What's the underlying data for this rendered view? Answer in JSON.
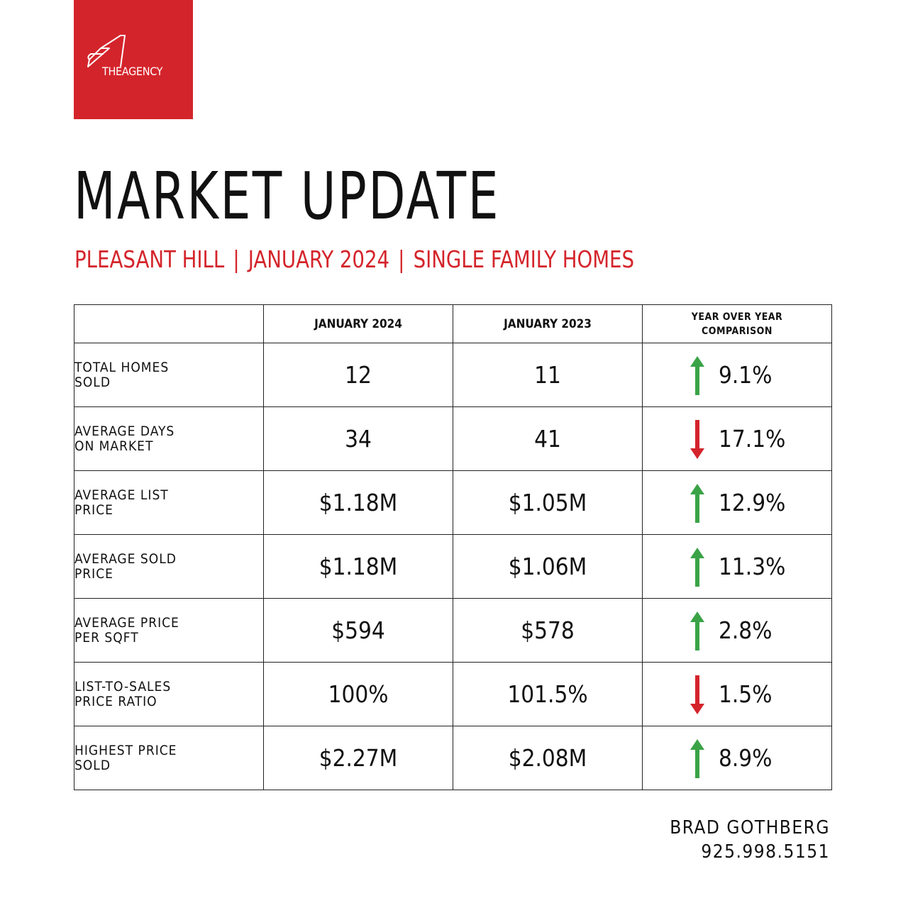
{
  "brand": {
    "name": "THEAGENCY",
    "color": "#d4242b",
    "icon": "agency-a-logo-icon"
  },
  "title": "MARKET UPDATE",
  "subtitle": {
    "location": "PLEASANT HILL",
    "period": "JANUARY 2024",
    "category": "SINGLE FAMILY HOMES",
    "separator": "|"
  },
  "table": {
    "headers": [
      "",
      "JANUARY 2024",
      "JANUARY 2023",
      "YEAR OVER YEAR",
      "COMPARISON"
    ],
    "rows": [
      {
        "label1": "TOTAL HOMES",
        "label2": "SOLD",
        "jan2024": "12",
        "jan2023": "11",
        "direction": "up",
        "change": "9.1%"
      },
      {
        "label1": "AVERAGE DAYS",
        "label2": "ON MARKET",
        "jan2024": "34",
        "jan2023": "41",
        "direction": "down",
        "change": "17.1%"
      },
      {
        "label1": "AVERAGE LIST",
        "label2": "PRICE",
        "jan2024": "$1.18M",
        "jan2023": "$1.05M",
        "direction": "up",
        "change": "12.9%"
      },
      {
        "label1": "AVERAGE SOLD",
        "label2": "PRICE",
        "jan2024": "$1.18M",
        "jan2023": "$1.06M",
        "direction": "up",
        "change": "11.3%"
      },
      {
        "label1": "AVERAGE PRICE",
        "label2": "PER SQFT",
        "jan2024": "$594",
        "jan2023": "$578",
        "direction": "up",
        "change": "2.8%"
      },
      {
        "label1": "LIST-TO-SALES",
        "label2": "PRICE RATIO",
        "jan2024": "100%",
        "jan2023": "101.5%",
        "direction": "down",
        "change": "1.5%"
      },
      {
        "label1": "HIGHEST PRICE",
        "label2": "SOLD",
        "jan2024": "$2.27M",
        "jan2023": "$2.08M",
        "direction": "up",
        "change": "8.9%"
      }
    ]
  },
  "colors": {
    "up": "#3aa347",
    "down": "#d4242b"
  },
  "contact": {
    "name": "BRAD GOTHBERG",
    "phone": "925.998.5151"
  }
}
